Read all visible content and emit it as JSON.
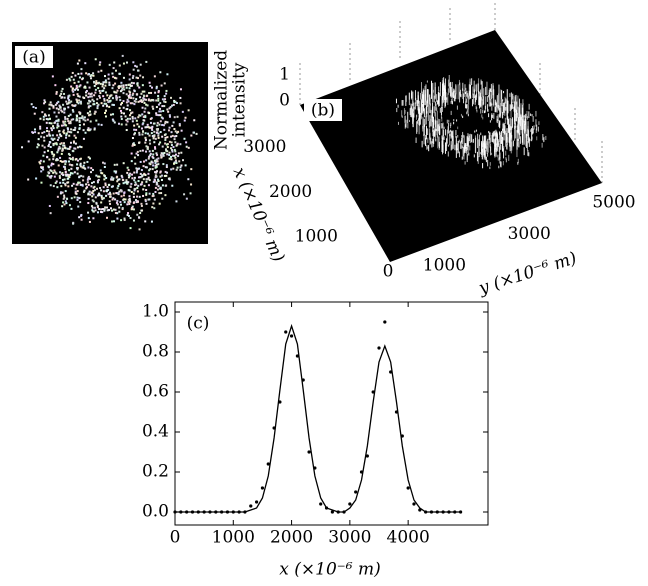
{
  "chart_data": [
    {
      "type": "image",
      "label": "(a)"
    },
    {
      "type": "surface3d",
      "label": "(b)",
      "zlabel": [
        "Normalized",
        "intensity"
      ],
      "xlabel": "x (×10⁻⁶ m)",
      "ylabel": "y (×10⁻⁶ m)",
      "xlim": [
        0,
        3500
      ],
      "ylim": [
        0,
        5000
      ],
      "zlim": [
        0,
        1.2
      ],
      "xticks": [
        0,
        1000,
        2000,
        3000
      ],
      "yticks": [
        1000,
        3000,
        5000
      ],
      "zticks": [
        0,
        1
      ]
    },
    {
      "type": "line",
      "label": "(c)",
      "xlabel": "x (×10⁻⁶ m)",
      "xlim": [
        0,
        5370
      ],
      "ylim": [
        -0.065,
        1.05
      ],
      "xticks": [
        0,
        1000,
        2000,
        3000,
        4000
      ],
      "yticks": [
        {
          "value": 0,
          "label": "0.0"
        },
        {
          "value": 0.2,
          "label": "0.2"
        },
        {
          "value": 0.4,
          "label": "0.4"
        },
        {
          "value": 0.6,
          "label": "0.6"
        },
        {
          "value": 0.8,
          "label": "0.8"
        },
        {
          "value": 1,
          "label": "1.0"
        }
      ],
      "x": [
        0,
        100,
        200,
        300,
        400,
        500,
        600,
        700,
        800,
        900,
        1000,
        1100,
        1200,
        1300,
        1400,
        1500,
        1600,
        1700,
        1800,
        1900,
        2000,
        2100,
        2200,
        2300,
        2400,
        2500,
        2600,
        2700,
        2800,
        2900,
        3000,
        3100,
        3200,
        3300,
        3400,
        3500,
        3600,
        3700,
        3800,
        3900,
        4000,
        4100,
        4200,
        4300,
        4400,
        4500,
        4600,
        4700,
        4800,
        4900
      ],
      "series": [
        {
          "style": "line",
          "color": "#000000",
          "values": [
            0,
            0,
            0,
            0,
            0,
            0,
            0,
            0,
            0,
            0,
            0,
            0,
            0,
            0.01,
            0.02,
            0.07,
            0.18,
            0.37,
            0.61,
            0.84,
            0.93,
            0.84,
            0.61,
            0.37,
            0.18,
            0.07,
            0.02,
            0.01,
            0,
            0,
            0.02,
            0.06,
            0.16,
            0.33,
            0.55,
            0.75,
            0.83,
            0.75,
            0.55,
            0.33,
            0.16,
            0.06,
            0.02,
            0,
            0,
            0,
            0,
            0,
            0,
            0
          ]
        },
        {
          "style": "points",
          "color": "#000000",
          "values": [
            0,
            0,
            0,
            0,
            0,
            0,
            0,
            0,
            0,
            0,
            0,
            0,
            0,
            0.03,
            0.05,
            0.12,
            0.24,
            0.42,
            0.55,
            0.9,
            0.88,
            0.78,
            0.66,
            0.3,
            0.22,
            0.04,
            0.02,
            0,
            0,
            0,
            0.04,
            0.1,
            0.2,
            0.28,
            0.6,
            0.82,
            0.95,
            0.7,
            0.5,
            0.38,
            0.12,
            0.04,
            0.01,
            0,
            0,
            0,
            0,
            0,
            0,
            0
          ]
        }
      ]
    }
  ]
}
